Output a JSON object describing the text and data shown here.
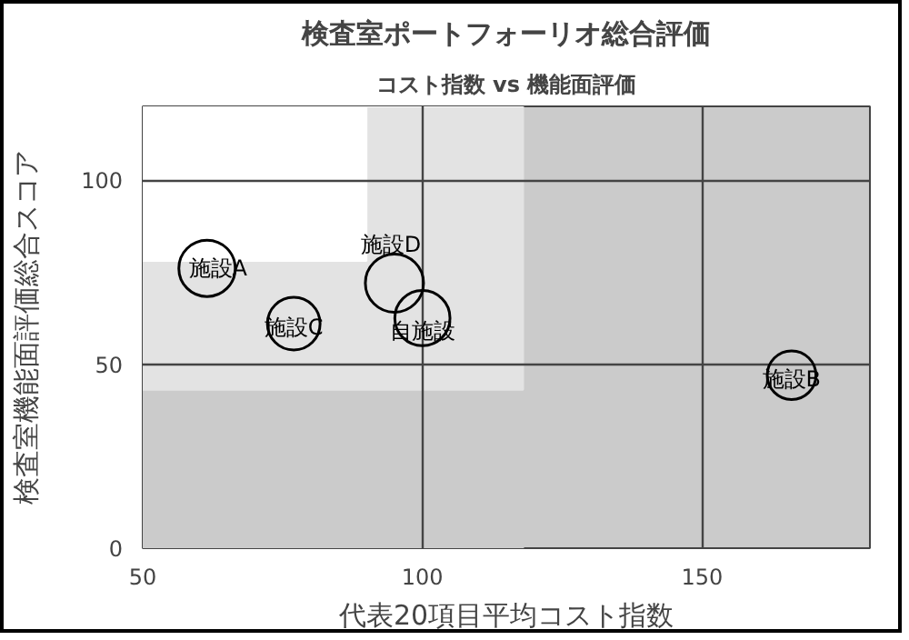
{
  "chart_data": {
    "type": "bubble",
    "title": "検査室ポートフォーリオ総合評価",
    "subtitle": "コスト指数 vs 機能面評価",
    "xlabel": "代表20項目平均コスト指数",
    "ylabel": "検査室機能面評価総合スコア",
    "xlim": [
      50,
      180
    ],
    "ylim": [
      0,
      120
    ],
    "xticks": [
      50,
      100,
      150
    ],
    "yticks": [
      0,
      50,
      100
    ],
    "grid": true,
    "stacked": true,
    "series": [
      {
        "type": "area",
        "color": "#cbcbcb",
        "x": [
          50,
          90,
          90,
          118
        ],
        "values": [
          43,
          43,
          43,
          43
        ]
      },
      {
        "type": "area",
        "color": "#e3e3e3",
        "x": [
          50,
          90,
          90,
          118
        ],
        "values": [
          35,
          35,
          77,
          77
        ]
      },
      {
        "type": "area",
        "color": "#ffffff",
        "x": [
          50,
          90,
          90,
          118
        ],
        "values": [
          42,
          42,
          0,
          0
        ]
      },
      {
        "name": "施設A",
        "color": "#000000",
        "marker": "circle",
        "x": [
          61.5
        ],
        "values": [
          76
        ],
        "sizes": [
          0.94
        ]
      },
      {
        "name": "施設B",
        "color": "#000000",
        "marker": "circle",
        "x": [
          166
        ],
        "values": [
          47
        ],
        "sizes": [
          0.7
        ]
      },
      {
        "name": "施設C",
        "color": "#000000",
        "marker": "circle",
        "x": [
          77
        ],
        "values": [
          61
        ],
        "sizes": [
          0.82
        ]
      },
      {
        "name": "施設D",
        "color": "#000000",
        "marker": "circle",
        "x": [
          95
        ],
        "values": [
          72
        ],
        "sizes": [
          1
        ]
      },
      {
        "name": "自施設",
        "color": "#000000",
        "marker": "circle",
        "x": [
          100
        ],
        "values": [
          62.5
        ],
        "sizes": [
          0.9
        ]
      }
    ]
  }
}
